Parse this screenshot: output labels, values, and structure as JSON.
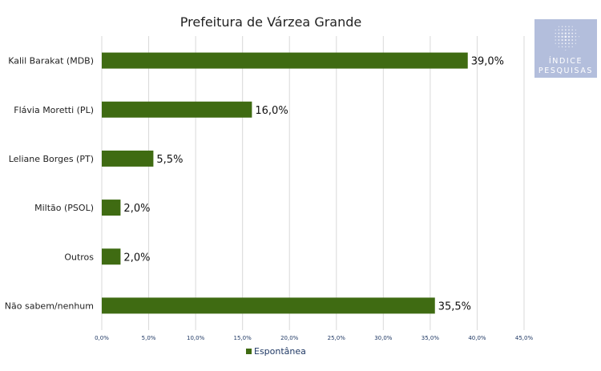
{
  "chart_data": {
    "type": "bar",
    "orientation": "horizontal",
    "title": "Prefeitura de Várzea Grande",
    "categories": [
      "Kalil Barakat (MDB)",
      "Flávia Moretti (PL)",
      "Leliane Borges (PT)",
      "Miltão (PSOL)",
      "Outros",
      "Não sabem/nenhum"
    ],
    "series": [
      {
        "name": "Espontânea",
        "values": [
          39.0,
          16.0,
          5.5,
          2.0,
          2.0,
          35.5
        ],
        "color": "#3f6b12"
      }
    ],
    "data_labels": [
      "39,0%",
      "16,0%",
      "5,5%",
      "2,0%",
      "2,0%",
      "35,5%"
    ],
    "xlim": [
      0,
      45
    ],
    "xticks": [
      0,
      5,
      10,
      15,
      20,
      25,
      30,
      35,
      40,
      45
    ],
    "xtick_labels": [
      "0,0%",
      "5,0%",
      "10,0%",
      "15,0%",
      "20,0%",
      "25,0%",
      "30,0%",
      "35,0%",
      "40,0%",
      "45,0%"
    ],
    "grid": true,
    "legend": {
      "position": "bottom",
      "entries": [
        "Espontânea"
      ]
    }
  },
  "logo": {
    "line1": "ÍNDICE",
    "line2": "PESQUISAS",
    "bg_color": "#b3bedc"
  },
  "colors": {
    "bar": "#3f6b12",
    "grid": "#d9d9d9",
    "tick_text": "#1f3864"
  }
}
